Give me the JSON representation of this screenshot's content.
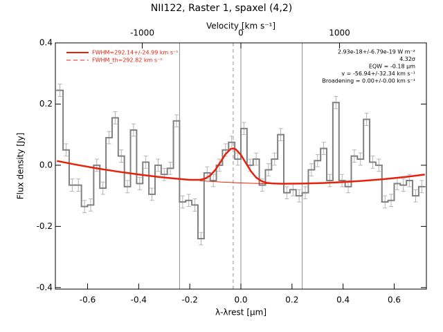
{
  "chart_data": {
    "type": "step",
    "title": "NII122, Raster 1, spaxel (4,2)",
    "x_label": "λ-λrest [μm]",
    "y_label": "Flux density [Jy]",
    "x2_label": "Velocity [km s⁻¹]",
    "color": "#808080",
    "error_color": "#b4b4b4",
    "x": [
      -0.708,
      -0.684,
      -0.66,
      -0.636,
      -0.612,
      -0.588,
      -0.564,
      -0.54,
      -0.516,
      -0.492,
      -0.468,
      -0.444,
      -0.42,
      -0.396,
      -0.372,
      -0.348,
      -0.324,
      -0.3,
      -0.276,
      -0.252,
      -0.228,
      -0.204,
      -0.18,
      -0.156,
      -0.132,
      -0.108,
      -0.084,
      -0.06,
      -0.036,
      -0.012,
      0.012,
      0.036,
      0.06,
      0.084,
      0.108,
      0.132,
      0.156,
      0.18,
      0.204,
      0.228,
      0.252,
      0.276,
      0.3,
      0.324,
      0.348,
      0.372,
      0.396,
      0.42,
      0.444,
      0.468,
      0.492,
      0.516,
      0.54,
      0.564,
      0.588,
      0.612,
      0.636,
      0.66,
      0.684,
      0.708
    ],
    "values": [
      0.245,
      0.05,
      -0.065,
      -0.065,
      -0.135,
      -0.13,
      0,
      -0.075,
      0.09,
      0.155,
      0.03,
      -0.07,
      0.115,
      -0.06,
      0.01,
      -0.095,
      0,
      -0.03,
      -0.01,
      0.145,
      -0.12,
      -0.115,
      -0.13,
      -0.24,
      -0.025,
      -0.05,
      0,
      0.05,
      0.075,
      0.02,
      0.12,
      0,
      0.02,
      -0.065,
      -0.015,
      0.02,
      0.1,
      -0.09,
      -0.08,
      -0.1,
      -0.09,
      -0.015,
      0.015,
      0.055,
      -0.05,
      0.205,
      -0.05,
      -0.07,
      0.03,
      0.02,
      0.15,
      0.01,
      0,
      -0.12,
      -0.115,
      -0.06,
      -0.065,
      -0.05,
      -0.1,
      -0.07
    ],
    "errors": [
      0.02,
      0.02,
      0.02,
      0.02,
      0.02,
      0.02,
      0.02,
      0.02,
      0.02,
      0.02,
      0.02,
      0.02,
      0.02,
      0.02,
      0.02,
      0.02,
      0.02,
      0.02,
      0.02,
      0.02,
      0.02,
      0.02,
      0.02,
      0.02,
      0.02,
      0.02,
      0.02,
      0.02,
      0.02,
      0.02,
      0.02,
      0.02,
      0.02,
      0.02,
      0.02,
      0.02,
      0.02,
      0.02,
      0.02,
      0.02,
      0.02,
      0.02,
      0.02,
      0.02,
      0.02,
      0.02,
      0.02,
      0.02,
      0.02,
      0.02,
      0.02,
      0.02,
      0.02,
      0.02,
      0.02,
      0.02,
      0.02,
      0.02,
      0.02,
      0.02
    ],
    "fit": {
      "color": "#e8200a",
      "x": [
        -0.72,
        -0.64,
        -0.56,
        -0.48,
        -0.4,
        -0.32,
        -0.24,
        -0.2,
        -0.16,
        -0.14,
        -0.12,
        -0.1,
        -0.08,
        -0.06,
        -0.04,
        -0.03,
        -0.02,
        0,
        0.02,
        0.04,
        0.06,
        0.08,
        0.1,
        0.12,
        0.16,
        0.24,
        0.32,
        0.4,
        0.48,
        0.56,
        0.64,
        0.72
      ],
      "values": [
        0.014,
        0.001,
        -0.0106,
        -0.021,
        -0.0303,
        -0.0383,
        -0.045,
        -0.0478,
        -0.0476,
        -0.0437,
        -0.0336,
        -0.0152,
        0.0102,
        0.0363,
        0.053,
        0.055,
        0.0522,
        0.0341,
        0.0065,
        -0.0204,
        -0.0403,
        -0.0518,
        -0.0572,
        -0.0594,
        -0.0605,
        -0.0599,
        -0.0581,
        -0.0551,
        -0.0508,
        -0.0454,
        -0.0386,
        -0.0306
      ]
    },
    "continuum": {
      "color": "#e8200a",
      "x": [
        -0.16,
        -0.08,
        0,
        0.08,
        0.16,
        0.24
      ],
      "values": [
        -0.0505,
        -0.0549,
        -0.058,
        -0.0599,
        -0.0605,
        -0.0599
      ]
    },
    "vertical_lines": [
      {
        "x": -0.24,
        "style": "solid"
      },
      {
        "x": 0,
        "style": "solid"
      },
      {
        "x": 0.24,
        "style": "solid"
      },
      {
        "x": -0.03,
        "style": "dashed"
      }
    ],
    "legend": [
      {
        "label": "FWHM=292.14+/-24.99 km s⁻¹",
        "color": "#e8200a",
        "style": "solid"
      },
      {
        "label": "FWHM_th=292.82 km s⁻¹",
        "color": "#e8200a",
        "style": "dashed"
      }
    ],
    "annotations": [
      "2.93e-18+/-6.79e-19 W m⁻²",
      "4.32σ",
      "EQW = -0.18 μm",
      "v = -56.94+/-32.34 km s⁻¹",
      "Broadening = 0.00+/-0.00 km s⁻¹"
    ],
    "xlim": [
      -0.726,
      0.726
    ],
    "ylim": [
      -0.405,
      0.4
    ],
    "x2lim": [
      -1881,
      1881
    ],
    "xticks": [
      -0.6,
      -0.4,
      -0.2,
      {
        "value": 0,
        "label": "0.0"
      },
      0.2,
      0.4,
      0.6
    ],
    "yticks": [
      -0.4,
      -0.2,
      {
        "value": 0,
        "label": "0.0"
      },
      0.2,
      0.4
    ],
    "x2ticks": [
      -1000,
      0,
      1000
    ]
  }
}
